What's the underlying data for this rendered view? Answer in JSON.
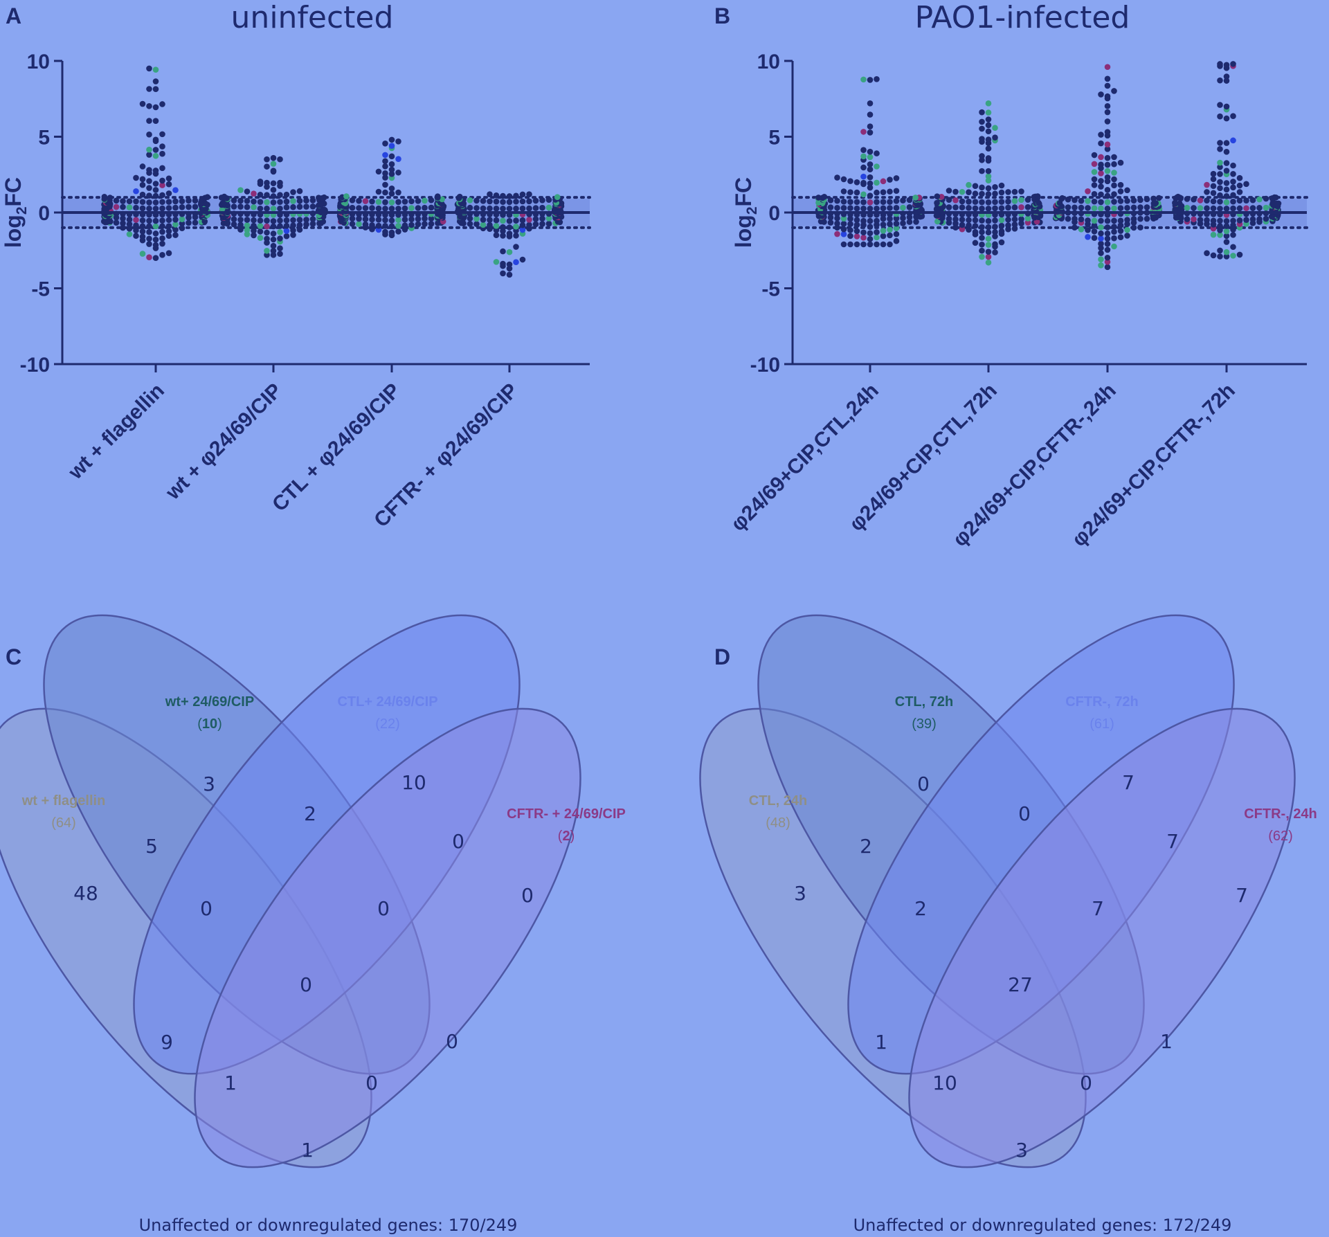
{
  "panels": {
    "A": {
      "label": "A",
      "title": "uninfected"
    },
    "B": {
      "label": "B",
      "title": "PAO1-infected"
    },
    "C": {
      "label": "C"
    },
    "D": {
      "label": "D"
    }
  },
  "colors": {
    "background": "#8aa6f2",
    "dark_points": "#1e2a6e",
    "green_points": "#3aa383",
    "magenta_points": "#8c2e78",
    "blue_points": "#2744e0",
    "band": "#7086dc",
    "venn_fill_1": "#8f9fcf",
    "venn_fill_2": "#6b86cf",
    "venn_fill_3": "#6f86ef",
    "venn_fill_4": "#8a8ae4",
    "venn_stroke": "#4d57a4"
  },
  "chart_data": [
    {
      "type": "scatter",
      "panel": "A",
      "title": "uninfected",
      "ylabel": "log2FC",
      "ylim": [
        -10,
        10
      ],
      "yticks": [
        "10",
        "5",
        "0",
        "-5",
        "-10"
      ],
      "reference_lines": {
        "solid": 0,
        "dotted": [
          -1,
          1
        ]
      },
      "categories": [
        "wt + flagellin",
        "wt + φ24/69/CIP",
        "CTL + φ24/69/CIP",
        "CFTR- + φ24/69/CIP"
      ],
      "group_summaries": [
        {
          "name": "wt + flagellin",
          "n": 249,
          "min": -3.0,
          "max": 9.5,
          "spread": 1.3
        },
        {
          "name": "wt + φ24/69/CIP",
          "n": 249,
          "min": -2.8,
          "max": 3.6,
          "spread": 0.8
        },
        {
          "name": "CTL + φ24/69/CIP",
          "n": 249,
          "min": -1.5,
          "max": 4.8,
          "spread": 0.6
        },
        {
          "name": "CFTR- + φ24/69/CIP",
          "n": 249,
          "min": -4.1,
          "max": 1.2,
          "spread": 0.7
        }
      ]
    },
    {
      "type": "scatter",
      "panel": "B",
      "title": "PAO1-infected",
      "ylabel": "log2FC",
      "ylim": [
        -10,
        10
      ],
      "yticks": [
        "10",
        "5",
        "0",
        "-5",
        "-10"
      ],
      "reference_lines": {
        "solid": 0,
        "dotted": [
          -1,
          1
        ]
      },
      "categories": [
        "φ24/69+CIP,CTL,24h",
        "φ24/69+CIP,CTL,72h",
        "φ24/69+CIP,CFTR-,24h",
        "φ24/69+CIP,CFTR-,72h"
      ],
      "group_summaries": [
        {
          "name": "φ24/69+CIP,CTL,24h",
          "n": 249,
          "min": -2.1,
          "max": 8.8,
          "spread": 1.4
        },
        {
          "name": "φ24/69+CIP,CTL,72h",
          "n": 249,
          "min": -3.3,
          "max": 7.2,
          "spread": 1.2
        },
        {
          "name": "φ24/69+CIP,CFTR-,24h",
          "n": 249,
          "min": -3.6,
          "max": 9.6,
          "spread": 1.6
        },
        {
          "name": "φ24/69+CIP,CFTR-,72h",
          "n": 249,
          "min": -2.9,
          "max": 9.8,
          "spread": 1.5
        }
      ]
    },
    {
      "type": "venn",
      "panel": "C",
      "sets": [
        {
          "name": "wt + flagellin",
          "count": "(64)",
          "color": "#8f8f86"
        },
        {
          "name": "wt+ 24/69/CIP",
          "count_prefix": "(",
          "count_bold": "10",
          "count_suffix": ")",
          "color": "#1f5c63"
        },
        {
          "name": "CTL+ 24/69/CIP",
          "count": "(22)",
          "color": "#6a82ec"
        },
        {
          "name": "CFTR- + 24/69/CIP",
          "count_prefix": "(",
          "count_bold": "2",
          "count_suffix": ")",
          "color": "#8b3a86"
        }
      ],
      "region_values": [
        "3",
        "10",
        "2",
        "5",
        "0",
        "48",
        "0",
        "0",
        "0",
        "0",
        "9",
        "0",
        "1",
        "0",
        "1"
      ],
      "footer": "Unaffected or downregulated genes: 170/249"
    },
    {
      "type": "venn",
      "panel": "D",
      "sets": [
        {
          "name": "CTL, 24h",
          "count": "(48)",
          "color": "#8f8f86"
        },
        {
          "name": "CTL, 72h",
          "count": "(39)",
          "color": "#1f5c63"
        },
        {
          "name": "CFTR-, 72h",
          "count": "(61)",
          "color": "#6a82ec"
        },
        {
          "name": "CFTR-, 24h",
          "count": "(62)",
          "color": "#8b3a86"
        }
      ],
      "region_values": [
        "0",
        "7",
        "0",
        "2",
        "7",
        "3",
        "2",
        "7",
        "7",
        "27",
        "1",
        "1",
        "10",
        "0",
        "3"
      ],
      "footer": "Unaffected or downregulated genes: 172/249"
    }
  ]
}
